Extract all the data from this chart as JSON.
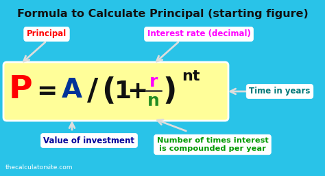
{
  "bg_color": "#29C3E8",
  "title": "Formula to Calculate Principal (starting figure)",
  "title_color": "#111111",
  "title_fontsize": 11.5,
  "formula_box_color": "#FFFE99",
  "p_color": "#FF0000",
  "equals_color": "#111111",
  "a_color": "#003399",
  "bracket_color": "#111111",
  "one_plus_color": "#111111",
  "r_color": "#FF00FF",
  "n_color": "#228B22",
  "nt_color": "#111111",
  "label_principal_color": "#FF0000",
  "label_principal_text": "Principal",
  "label_interest_color": "#FF00FF",
  "label_interest_text": "Interest rate (decimal)",
  "label_investment_color": "#000099",
  "label_investment_text": "Value of investment",
  "label_time_color": "#007777",
  "label_time_text": "Time in years",
  "label_compound_color": "#009900",
  "label_compound_text": "Number of times interest\nis compounded per year",
  "watermark": "thecalculatorsite.com",
  "watermark_color": "#FFFFFF",
  "arrow_color": "#DDDDDD"
}
